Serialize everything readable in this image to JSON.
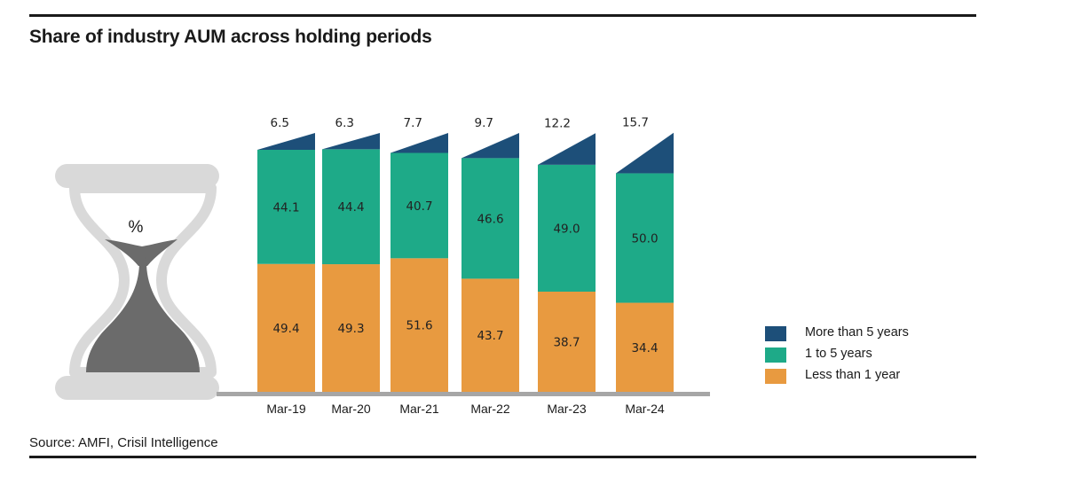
{
  "title": "Share of industry AUM across holding periods",
  "source": "Source: AMFI, Crisil Intelligence",
  "icon": {
    "name": "hourglass-icon",
    "label": "%"
  },
  "colors": {
    "more_than_5": "#1d4f79",
    "one_to_5": "#1eaa88",
    "less_than_1": "#e89a40",
    "axis": "#a6a6a6",
    "hourglass_frame": "#d9d9d9",
    "hourglass_sand": "#6b6b6b"
  },
  "chart_data": {
    "type": "bar",
    "stacked": true,
    "categories": [
      "Mar-19",
      "Mar-20",
      "Mar-21",
      "Mar-22",
      "Mar-23",
      "Mar-24"
    ],
    "series": [
      {
        "name": "Less than 1 year",
        "color": "#e89a40",
        "values": [
          49.4,
          49.3,
          51.6,
          43.7,
          38.7,
          34.4
        ]
      },
      {
        "name": "1 to 5 years",
        "color": "#1eaa88",
        "values": [
          44.1,
          44.4,
          40.7,
          46.6,
          49.0,
          50.0
        ]
      },
      {
        "name": "More than 5 years",
        "color": "#1d4f79",
        "values": [
          6.5,
          6.3,
          7.7,
          9.7,
          12.2,
          15.7
        ]
      }
    ],
    "value_labels": [
      [
        "49.4",
        "49.3",
        "51.6",
        "43.7",
        "38.7",
        "34.4"
      ],
      [
        "44.1",
        "44.4",
        "40.7",
        "46.6",
        "49.0",
        "50.0"
      ],
      [
        "6.5",
        "6.3",
        "7.7",
        "9.7",
        "12.2",
        "15.7"
      ]
    ],
    "ylim": [
      0,
      100
    ],
    "grid": false,
    "legend_position": "right"
  },
  "legend": [
    {
      "label": "More than 5 years",
      "color": "#1d4f79"
    },
    {
      "label": "1 to 5 years",
      "color": "#1eaa88"
    },
    {
      "label": "Less than 1 year",
      "color": "#e89a40"
    }
  ]
}
